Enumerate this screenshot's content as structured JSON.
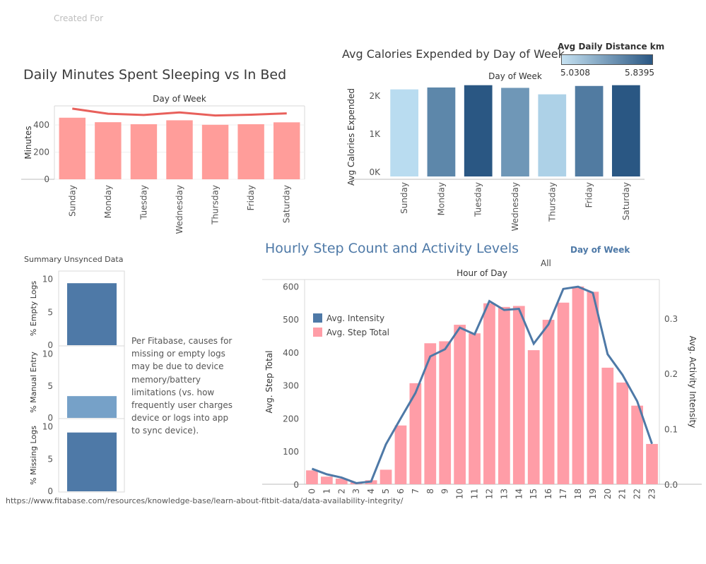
{
  "header": {
    "created_for": "Created For"
  },
  "sleep": {
    "title": "Daily Minutes Spent Sleeping vs In Bed"
  },
  "calories": {
    "title": "Avg Calories Expended by Day of Week",
    "legend": {
      "title": "Avg Daily Distance km",
      "min": "5.0308",
      "max": "5.8395"
    }
  },
  "steps": {
    "title": "Hourly Step Count and Activity Levels",
    "filter_label": "Day of Week",
    "filter_value": "All"
  },
  "summary": {
    "title": "Summary Unsynced Data"
  },
  "note": "Per Fitabase, causes for missing or empty logs may be due to device memory/battery limitations (vs. how frequently user charges device or logs into app to sync device).",
  "source": "https://www.fitabase.com/resources/knowledge-base/learn-about-fitbit-data/data-availability-integrity/",
  "colors": {
    "sleep_bar": "#ff9d9a",
    "sleep_line": "#e8605b",
    "step_bar": "#ff9da7",
    "intensity_line": "#4e79a7",
    "summary_bar": "#4e79a7",
    "summary_bar_light": "#76a1c8"
  },
  "chart_data": [
    {
      "type": "bar",
      "title": "Daily Minutes Spent Sleeping vs In Bed",
      "xlabel": "Day of Week",
      "ylabel": "Minutes",
      "categories": [
        "Sunday",
        "Monday",
        "Tuesday",
        "Wednesday",
        "Thursday",
        "Friday",
        "Saturday"
      ],
      "series": [
        {
          "values": [
            453,
            420,
            405,
            434,
            401,
            405,
            419
          ]
        },
        {
          "values": [
            520,
            482,
            473,
            492,
            469,
            475,
            485
          ]
        }
      ],
      "ylim": [
        0,
        540
      ],
      "yticks": [
        0,
        200,
        400
      ]
    },
    {
      "type": "bar",
      "title": "Avg Calories Expended by Day of Week",
      "xlabel": "Day of Week",
      "ylabel": "Avg Calories Expended",
      "categories": [
        "Sunday",
        "Monday",
        "Tuesday",
        "Wednesday",
        "Thursday",
        "Friday",
        "Saturday"
      ],
      "values": [
        2290,
        2340,
        2400,
        2330,
        2160,
        2380,
        2400
      ],
      "color_values": [
        5.03,
        5.55,
        5.84,
        5.45,
        5.1,
        5.62,
        5.84
      ],
      "color_legend": "Avg Daily Distance km",
      "ylim": [
        0,
        2450
      ],
      "yticks": [
        "0K",
        "1K",
        "2K"
      ]
    },
    {
      "type": "bar",
      "title": "Hourly Step Count and Activity Levels",
      "xlabel": "Hour of Day",
      "ylabel": "Avg. Step Total",
      "y2label": "Avg. Activity Intensity",
      "categories": [
        "0",
        "1",
        "2",
        "3",
        "4",
        "5",
        "6",
        "7",
        "8",
        "9",
        "10",
        "11",
        "12",
        "13",
        "14",
        "15",
        "16",
        "17",
        "18",
        "19",
        "20",
        "21",
        "22",
        "23"
      ],
      "series": [
        {
          "name": "Avg. Step Total",
          "type": "bar",
          "values": [
            42,
            23,
            17,
            6,
            12,
            44,
            178,
            306,
            427,
            433,
            483,
            457,
            548,
            537,
            540,
            406,
            498,
            550,
            599,
            583,
            353,
            308,
            238,
            122
          ]
        },
        {
          "name": "Avg. Intensity",
          "type": "line",
          "axis": "right",
          "values": [
            0.028,
            0.018,
            0.012,
            0.002,
            0.005,
            0.072,
            0.119,
            0.165,
            0.231,
            0.244,
            0.283,
            0.271,
            0.331,
            0.315,
            0.317,
            0.254,
            0.289,
            0.353,
            0.357,
            0.346,
            0.235,
            0.198,
            0.15,
            0.073
          ]
        }
      ],
      "ylim": [
        0,
        620
      ],
      "y2lim": [
        0,
        0.37
      ],
      "yticks": [
        0,
        100,
        200,
        300,
        400,
        500,
        600
      ],
      "y2ticks": [
        "0.0",
        "0.1",
        "0.2",
        "0.3"
      ]
    },
    {
      "type": "bar",
      "title": "Summary Unsynced Data",
      "categories": [
        "% Empty Logs",
        "% Manual Entry",
        "% Missing Logs"
      ],
      "values": [
        9.3,
        3.3,
        9.0
      ],
      "ylim": [
        0,
        10.5
      ],
      "yticks": [
        0,
        5,
        10
      ]
    }
  ]
}
